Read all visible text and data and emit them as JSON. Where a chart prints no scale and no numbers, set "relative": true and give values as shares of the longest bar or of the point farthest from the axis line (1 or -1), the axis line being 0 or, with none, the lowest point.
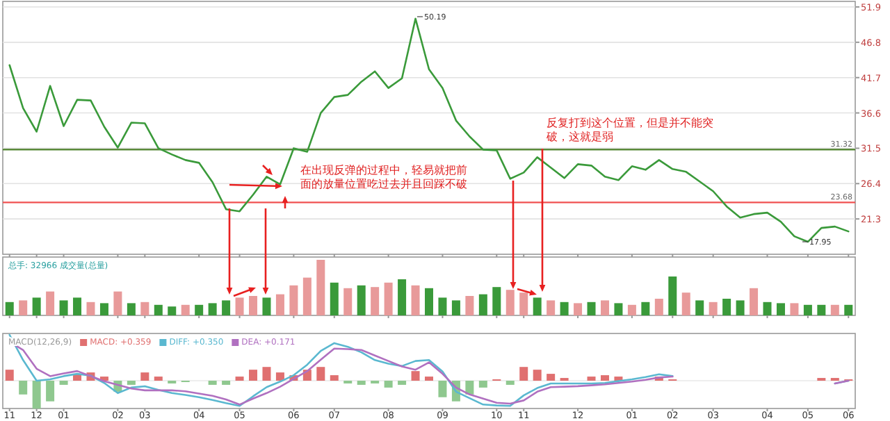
{
  "chart_data": [
    {
      "type": "line",
      "categories": [
        "11",
        null,
        "12",
        null,
        "01",
        null,
        null,
        null,
        "02",
        null,
        "03",
        null,
        null,
        null,
        "04",
        null,
        null,
        "05",
        null,
        null,
        null,
        "06",
        null,
        null,
        "07",
        null,
        null,
        null,
        "08",
        null,
        null,
        null,
        "09",
        null,
        null,
        null,
        "10",
        null,
        "11",
        null,
        null,
        null,
        "12",
        null,
        null,
        null,
        "01",
        null,
        null,
        "02",
        null,
        null,
        "03",
        null,
        null,
        null,
        "04",
        null,
        null,
        "05",
        null,
        null,
        "06"
      ],
      "series": [
        {
          "color": "#3a9a3a",
          "values": [
            43.5,
            37.3,
            33.9,
            40.5,
            34.7,
            38.5,
            38.4,
            34.6,
            31.6,
            35.2,
            35.1,
            31.5,
            30.6,
            29.8,
            29.4,
            26.6,
            22.7,
            22.4,
            24.8,
            27.4,
            26.3,
            31.5,
            31.0,
            36.6,
            38.9,
            39.2,
            41.1,
            42.6,
            40.2,
            41.6,
            50.2,
            42.9,
            40.2,
            35.5,
            33.2,
            31.3,
            31.2,
            27.1,
            28.0,
            30.2,
            28.7,
            27.2,
            29.2,
            29.0,
            27.4,
            26.9,
            28.9,
            28.4,
            29.8,
            28.5,
            28.1,
            26.7,
            25.3,
            23.1,
            21.5,
            22.0,
            22.2,
            20.9,
            18.8,
            18.0,
            20.0,
            20.2,
            19.5
          ]
        }
      ],
      "ylim": [
        16.2,
        52.3
      ],
      "yticks": [
        21.3,
        26.4,
        31.5,
        36.6,
        41.7,
        46.8,
        51.9
      ],
      "grid": "y",
      "tick_labels": "y",
      "ref_lines": [
        {
          "axis": "y",
          "value": 31.32,
          "label": "31.32",
          "color": "#5a8a3a"
        },
        {
          "axis": "y",
          "value": 23.68,
          "label": "23.68",
          "color": "#f05050"
        }
      ],
      "annotations": [
        "在出现反弹的过程中，轻易就把前面的放量位置吃过去并且回踩不破",
        "反复打到这个位置，但是并不能突破，这就是弱",
        "50.19",
        "17.95"
      ]
    },
    {
      "type": "bar",
      "relative": true,
      "tick_labels": false,
      "categories": [
        "11",
        null,
        "12",
        null,
        "01",
        null,
        null,
        null,
        "02",
        null,
        "03",
        null,
        null,
        null,
        "04",
        null,
        null,
        "05",
        null,
        null,
        null,
        "06",
        null,
        null,
        "07",
        null,
        null,
        null,
        "08",
        null,
        null,
        null,
        "09",
        null,
        null,
        null,
        "10",
        null,
        "11",
        null,
        null,
        null,
        "12",
        null,
        null,
        null,
        "01",
        null,
        null,
        "02",
        null,
        null,
        "03",
        null,
        null,
        null,
        "04",
        null,
        null,
        "05",
        null,
        null,
        "06"
      ],
      "annotations": [
        "总手: 32966  成交量(总量)"
      ],
      "values": [
        0.24,
        0.27,
        0.32,
        0.43,
        0.27,
        0.32,
        0.24,
        0.22,
        0.43,
        0.22,
        0.24,
        0.19,
        0.16,
        0.19,
        0.19,
        0.22,
        0.27,
        0.32,
        0.35,
        0.32,
        0.38,
        0.54,
        0.68,
        1,
        0.59,
        0.49,
        0.54,
        0.51,
        0.59,
        0.65,
        0.54,
        0.49,
        0.32,
        0.27,
        0.35,
        0.38,
        0.51,
        0.46,
        0.41,
        0.32,
        0.27,
        0.24,
        0.22,
        0.24,
        0.27,
        0.22,
        0.19,
        0.24,
        0.3,
        0.7,
        0.41,
        0.27,
        0.24,
        0.3,
        0.27,
        0.49,
        0.24,
        0.22,
        0.22,
        0.19,
        0.19,
        0.19,
        0.19
      ],
      "colors": [
        "#3a9a3a",
        "#e89a9a",
        "#3a9a3a",
        "#e89a9a",
        "#3a9a3a",
        "#3a9a3a",
        "#e89a9a",
        "#3a9a3a",
        "#e89a9a",
        "#3a9a3a",
        "#e89a9a",
        "#3a9a3a",
        "#3a9a3a",
        "#e89a9a",
        "#3a9a3a",
        "#3a9a3a",
        "#3a9a3a",
        "#e89a9a",
        "#e89a9a",
        "#3a9a3a",
        "#e89a9a",
        "#e89a9a",
        "#e89a9a",
        "#e89a9a",
        "#3a9a3a",
        "#e89a9a",
        "#3a9a3a",
        "#e89a9a",
        "#e89a9a",
        "#3a9a3a",
        "#e89a9a",
        "#3a9a3a",
        "#3a9a3a",
        "#3a9a3a",
        "#e89a9a",
        "#3a9a3a",
        "#3a9a3a",
        "#e89a9a",
        "#e89a9a",
        "#3a9a3a",
        "#e89a9a",
        "#3a9a3a",
        "#e89a9a",
        "#3a9a3a",
        "#e89a9a",
        "#3a9a3a",
        "#e89a9a",
        "#3a9a3a",
        "#e89a9a",
        "#3a9a3a",
        "#e89a9a",
        "#3a9a3a",
        "#e89a9a",
        "#3a9a3a",
        "#3a9a3a",
        "#e89a9a",
        "#3a9a3a",
        "#3a9a3a",
        "#e89a9a",
        "#3a9a3a",
        "#3a9a3a",
        "#e89a9a",
        "#3a9a3a"
      ]
    },
    {
      "type": "line",
      "relative": true,
      "tick_labels": "x",
      "legend": "top left",
      "subtitle": "MACD(12,26,9)",
      "categories": [
        "11",
        null,
        "12",
        null,
        "01",
        null,
        null,
        null,
        "02",
        null,
        "03",
        null,
        null,
        null,
        "04",
        null,
        null,
        "05",
        null,
        null,
        null,
        "06",
        null,
        null,
        "07",
        null,
        null,
        null,
        "08",
        null,
        null,
        null,
        "09",
        null,
        null,
        null,
        "10",
        null,
        "11",
        null,
        null,
        null,
        "12",
        null,
        null,
        null,
        "01",
        null,
        null,
        "02",
        null,
        null,
        "03",
        null,
        null,
        null,
        "04",
        null,
        null,
        "05",
        null,
        null,
        "06"
      ],
      "series": [
        {
          "name": "MACD: +0.359",
          "type": "bar",
          "color": "#e07070",
          "colors": [
            "#e07070",
            "#8fc88f",
            "#8fc88f",
            "#8fc88f",
            "#8fc88f",
            "#e07070",
            "#e07070",
            "#e07070",
            "#8fc88f",
            "#8fc88f",
            "#e07070",
            "#e07070",
            "#8fc88f",
            "#8fc88f",
            "#e07070",
            "#8fc88f",
            "#8fc88f",
            "#e07070",
            "#e07070",
            "#e07070",
            "#e07070",
            "#e07070",
            "#e07070",
            "#e07070",
            "#e07070",
            "#8fc88f",
            "#8fc88f",
            "#8fc88f",
            "#8fc88f",
            "#8fc88f",
            "#e07070",
            "#e07070",
            "#8fc88f",
            "#8fc88f",
            "#8fc88f",
            "#8fc88f",
            "#e07070",
            "#8fc88f",
            "#e07070",
            "#e07070",
            "#e07070",
            "#e07070",
            "#e07070",
            "#e07070",
            "#e07070",
            "#e07070",
            null,
            null,
            "#e07070",
            "#e07070",
            null,
            null,
            null,
            null,
            null,
            null,
            null,
            null,
            null,
            null,
            "#e07070",
            "#e07070",
            "#e07070"
          ],
          "values": [
            0.24,
            -0.3,
            -0.61,
            -0.45,
            -0.09,
            0.15,
            0.18,
            0.09,
            -0.24,
            -0.09,
            0.18,
            0.09,
            -0.06,
            -0.03,
            0,
            -0.09,
            -0.09,
            0.09,
            0.24,
            0.3,
            0.18,
            0.12,
            0.24,
            0.3,
            0.12,
            -0.06,
            -0.09,
            -0.06,
            -0.15,
            -0.09,
            0.21,
            0.09,
            -0.36,
            -0.45,
            -0.3,
            -0.15,
            0.03,
            -0.09,
            0.3,
            0.24,
            0.15,
            0.06,
            0,
            0.09,
            0.12,
            0.09,
            null,
            null,
            0.09,
            0.03,
            null,
            null,
            null,
            null,
            null,
            null,
            null,
            null,
            null,
            null,
            0.06,
            0.06,
            0.03
          ]
        },
        {
          "name": "DIFF: +0.350",
          "color": "#5ab8d0",
          "values": [
            1,
            0.45,
            0,
            0.03,
            0.1,
            0.15,
            0.11,
            -0.05,
            -0.27,
            -0.15,
            -0.12,
            -0.2,
            -0.27,
            -0.31,
            -0.36,
            -0.42,
            -0.49,
            -0.55,
            -0.34,
            -0.14,
            -0.02,
            0.12,
            0.35,
            0.65,
            0.82,
            0.74,
            0.62,
            0.45,
            0.37,
            0.32,
            0.43,
            0.45,
            0.2,
            -0.24,
            -0.38,
            -0.52,
            -0.54,
            -0.55,
            -0.32,
            -0.16,
            -0.06,
            -0.06,
            -0.06,
            -0.06,
            -0.05,
            -0.01,
            0.03,
            0.08,
            0.14,
            0.1,
            null,
            null,
            null,
            null,
            null,
            null,
            null,
            null,
            null,
            null,
            null,
            -0.06,
            0
          ]
        },
        {
          "name": "DEA: +0.171",
          "color": "#b070c0",
          "values": [
            0.85,
            0.67,
            0.26,
            0.1,
            0.16,
            0.21,
            0.1,
            -0.01,
            -0.09,
            -0.17,
            -0.21,
            -0.21,
            -0.21,
            -0.23,
            -0.28,
            -0.33,
            -0.41,
            -0.52,
            -0.39,
            -0.27,
            -0.13,
            0.04,
            0.21,
            0.46,
            0.7,
            0.69,
            0.67,
            0.55,
            0.43,
            0.31,
            0.24,
            0.4,
            0.15,
            -0.15,
            -0.3,
            -0.39,
            -0.48,
            -0.5,
            -0.43,
            -0.24,
            -0.14,
            -0.13,
            -0.12,
            -0.1,
            -0.08,
            -0.05,
            -0.02,
            0.02,
            0.07,
            0.09,
            null,
            null,
            null,
            null,
            null,
            null,
            null,
            null,
            null,
            null,
            null,
            -0.06,
            0
          ]
        }
      ]
    }
  ]
}
